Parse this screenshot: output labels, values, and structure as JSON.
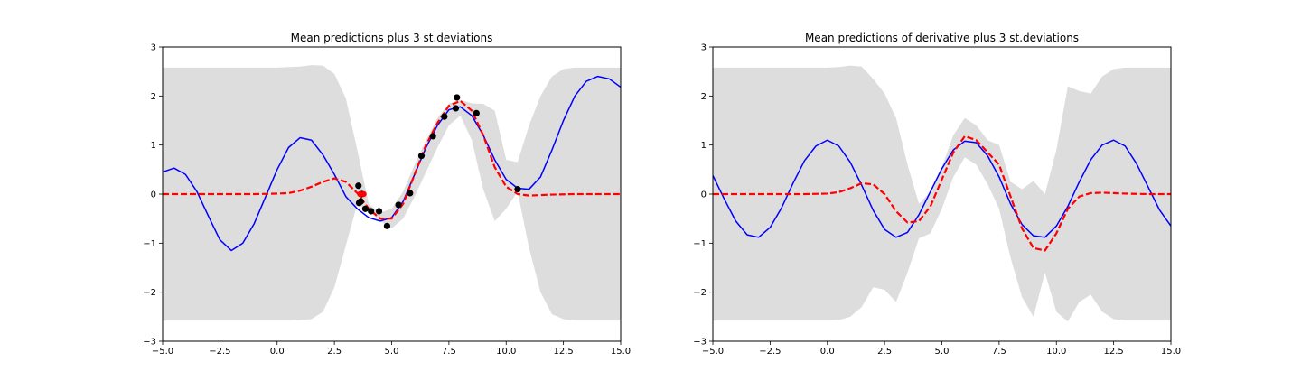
{
  "chart_data": [
    {
      "type": "line",
      "title": "Mean predictions plus 3 st.deviations",
      "xlabel": "",
      "ylabel": "",
      "xlim": [
        -5,
        15
      ],
      "ylim": [
        -3,
        3
      ],
      "xticks": [
        -5,
        -2.5,
        0,
        2.5,
        5,
        7.5,
        10,
        12.5,
        15
      ],
      "xtick_labels": [
        "−5.0",
        "−2.5",
        "0.0",
        "2.5",
        "5.0",
        "7.5",
        "10.0",
        "12.5",
        "15.0"
      ],
      "yticks": [
        -3,
        -2,
        -1,
        0,
        1,
        2,
        3
      ],
      "ytick_labels": [
        "−3",
        "−2",
        "−1",
        "0",
        "1",
        "2",
        "3"
      ],
      "grid": false,
      "band": {
        "color": "#dddddd",
        "x": [
          -5,
          0,
          0.5,
          1,
          1.5,
          2,
          2.5,
          3,
          3.5,
          4,
          4.5,
          5,
          5.5,
          6,
          6.5,
          7,
          7.5,
          8,
          8.5,
          9,
          9.5,
          10,
          10.5,
          11,
          11.5,
          12,
          12.5,
          13,
          14,
          15
        ],
        "upper": [
          2.58,
          2.58,
          2.59,
          2.6,
          2.63,
          2.62,
          2.45,
          1.95,
          0.9,
          -0.2,
          -0.38,
          -0.3,
          0.05,
          0.6,
          1.1,
          1.55,
          1.85,
          1.92,
          1.85,
          1.84,
          1.7,
          0.7,
          0.65,
          1.4,
          2.0,
          2.4,
          2.55,
          2.58,
          2.58,
          2.58
        ],
        "lower": [
          -2.58,
          -2.58,
          -2.58,
          -2.57,
          -2.55,
          -2.4,
          -1.9,
          -1.05,
          -0.2,
          -0.35,
          -0.55,
          -0.7,
          -0.5,
          -0.05,
          0.45,
          0.95,
          1.4,
          1.6,
          1.1,
          0.1,
          -0.55,
          -0.3,
          0.05,
          -1.1,
          -2.0,
          -2.45,
          -2.55,
          -2.58,
          -2.58,
          -2.58
        ]
      },
      "series": [
        {
          "color": "#0000ff",
          "style": "solid",
          "x": [
            -5,
            -4.5,
            -4,
            -3.5,
            -3,
            -2.5,
            -2,
            -1.5,
            -1,
            -0.5,
            0,
            0.5,
            1,
            1.5,
            2,
            2.5,
            3,
            3.5,
            4,
            4.5,
            5,
            5.5,
            6,
            6.5,
            7,
            7.5,
            8,
            8.5,
            9,
            9.5,
            10,
            10.5,
            11,
            11.5,
            12,
            12.5,
            13,
            13.5,
            14,
            14.5,
            15
          ],
          "y": [
            0.45,
            0.53,
            0.4,
            0.05,
            -0.45,
            -0.93,
            -1.15,
            -1.0,
            -0.6,
            -0.05,
            0.5,
            0.95,
            1.15,
            1.1,
            0.8,
            0.4,
            -0.05,
            -0.3,
            -0.48,
            -0.55,
            -0.48,
            -0.15,
            0.4,
            0.95,
            1.4,
            1.72,
            1.78,
            1.6,
            1.2,
            0.7,
            0.3,
            0.12,
            0.1,
            0.35,
            0.9,
            1.5,
            2.0,
            2.3,
            2.4,
            2.35,
            2.18
          ]
        },
        {
          "color": "#ff0000",
          "style": "dashed",
          "x": [
            -5,
            -4,
            -3,
            -2,
            -1,
            0,
            0.5,
            1,
            1.5,
            2,
            2.5,
            3,
            3.5,
            4,
            4.5,
            5,
            5.5,
            6,
            6.5,
            7,
            7.5,
            8,
            8.5,
            9,
            9.5,
            10,
            10.5,
            11,
            11.5,
            12,
            13,
            14,
            15
          ],
          "y": [
            0,
            0,
            0,
            0,
            0,
            0.01,
            0.02,
            0.07,
            0.15,
            0.25,
            0.32,
            0.25,
            0.02,
            -0.3,
            -0.5,
            -0.5,
            -0.2,
            0.4,
            1.0,
            1.45,
            1.8,
            1.9,
            1.7,
            1.2,
            0.55,
            0.15,
            0.0,
            -0.03,
            -0.02,
            -0.01,
            0,
            0,
            0
          ]
        }
      ],
      "points": {
        "color": "#000000",
        "x": [
          3.55,
          3.58,
          3.65,
          3.7,
          3.85,
          4.1,
          4.45,
          4.8,
          5.3,
          5.8,
          6.3,
          6.8,
          7.3,
          7.8,
          7.85,
          8.7,
          10.5
        ],
        "y": [
          0.17,
          -0.18,
          -0.15,
          0.0,
          -0.3,
          -0.35,
          -0.35,
          -0.65,
          -0.22,
          0.02,
          0.78,
          1.18,
          1.58,
          1.75,
          1.97,
          1.65,
          0.1
        ]
      },
      "red_points": {
        "color": "#ff0000",
        "x": [
          3.62,
          3.78
        ],
        "y": [
          0.0,
          0.0
        ]
      }
    },
    {
      "type": "line",
      "title": "Mean predictions of derivative plus 3 st.deviations",
      "xlabel": "",
      "ylabel": "",
      "xlim": [
        -5,
        15
      ],
      "ylim": [
        -3,
        3
      ],
      "xticks": [
        -5,
        -2.5,
        0,
        2.5,
        5,
        7.5,
        10,
        12.5,
        15
      ],
      "xtick_labels": [
        "−5.0",
        "−2.5",
        "0.0",
        "2.5",
        "5.0",
        "7.5",
        "10.0",
        "12.5",
        "15.0"
      ],
      "yticks": [
        -3,
        -2,
        -1,
        0,
        1,
        2,
        3
      ],
      "ytick_labels": [
        "−3",
        "−2",
        "−1",
        "0",
        "1",
        "2",
        "3"
      ],
      "grid": false,
      "band": {
        "color": "#dddddd",
        "x": [
          -5,
          0,
          0.5,
          1,
          1.5,
          2,
          2.5,
          3,
          3.5,
          4,
          4.5,
          5,
          5.5,
          6,
          6.5,
          7,
          7.5,
          8,
          8.5,
          9,
          9.5,
          10,
          10.5,
          11,
          11.5,
          12,
          12.5,
          13,
          14,
          15
        ],
        "upper": [
          2.58,
          2.58,
          2.59,
          2.62,
          2.6,
          2.35,
          2.05,
          1.55,
          0.6,
          -0.2,
          0.05,
          0.55,
          1.2,
          1.55,
          1.4,
          1.1,
          1.0,
          0.25,
          0.1,
          0.27,
          0.0,
          0.9,
          2.2,
          2.1,
          2.05,
          2.4,
          2.55,
          2.58,
          2.58,
          2.58
        ],
        "lower": [
          -2.58,
          -2.58,
          -2.57,
          -2.5,
          -2.3,
          -1.9,
          -1.95,
          -2.2,
          -1.6,
          -0.9,
          -0.8,
          -0.3,
          0.35,
          0.75,
          0.6,
          0.2,
          -0.3,
          -1.3,
          -2.1,
          -2.5,
          -1.6,
          -2.4,
          -2.6,
          -2.2,
          -2.05,
          -2.4,
          -2.55,
          -2.58,
          -2.58,
          -2.58
        ]
      },
      "series": [
        {
          "color": "#0000ff",
          "style": "solid",
          "x": [
            -5,
            -4.5,
            -4,
            -3.5,
            -3,
            -2.5,
            -2,
            -1.5,
            -1,
            -0.5,
            0,
            0.5,
            1,
            1.5,
            2,
            2.5,
            3,
            3.5,
            4,
            4.5,
            5,
            5.5,
            6,
            6.5,
            7,
            7.5,
            8,
            8.5,
            9,
            9.5,
            10,
            10.5,
            11,
            11.5,
            12,
            12.5,
            13,
            13.5,
            14,
            14.5,
            15
          ],
          "y": [
            0.38,
            -0.1,
            -0.55,
            -0.83,
            -0.88,
            -0.68,
            -0.28,
            0.22,
            0.68,
            0.98,
            1.1,
            0.98,
            0.65,
            0.18,
            -0.33,
            -0.72,
            -0.88,
            -0.78,
            -0.42,
            0.05,
            0.52,
            0.9,
            1.08,
            1.05,
            0.78,
            0.35,
            -0.2,
            -0.62,
            -0.85,
            -0.88,
            -0.65,
            -0.25,
            0.25,
            0.7,
            1.0,
            1.1,
            0.98,
            0.62,
            0.15,
            -0.32,
            -0.65
          ]
        },
        {
          "color": "#ff0000",
          "style": "dashed",
          "x": [
            -5,
            -4,
            -3,
            -2,
            -1,
            0,
            0.5,
            1,
            1.5,
            2,
            2.5,
            3,
            3.5,
            4,
            4.5,
            5,
            5.5,
            6,
            6.5,
            7,
            7.5,
            8,
            8.5,
            9,
            9.5,
            10,
            10.5,
            11,
            11.5,
            12,
            12.5,
            13,
            14,
            15
          ],
          "y": [
            0,
            0,
            0,
            0,
            0,
            0.01,
            0.04,
            0.12,
            0.22,
            0.2,
            0.0,
            -0.35,
            -0.58,
            -0.55,
            -0.25,
            0.3,
            0.85,
            1.18,
            1.1,
            0.85,
            0.6,
            -0.05,
            -0.7,
            -1.1,
            -1.15,
            -0.8,
            -0.3,
            -0.05,
            0.02,
            0.03,
            0.02,
            0.01,
            0,
            0
          ]
        }
      ]
    }
  ]
}
